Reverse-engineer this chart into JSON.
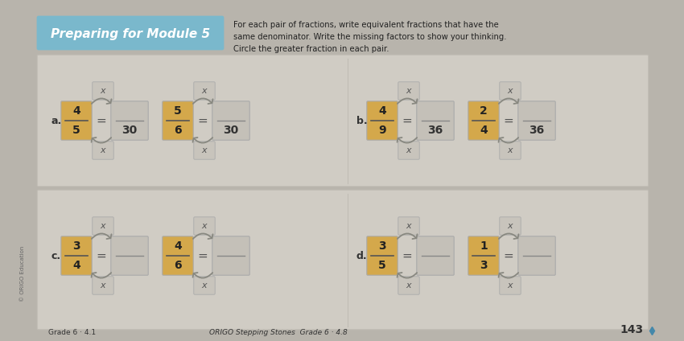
{
  "title": "Preparing for Module 5",
  "instructions": "For each pair of fractions, write equivalent fractions that have the\nsame denominator. Write the missing factors to show your thinking.\nCircle the greater fraction in each pair.",
  "bg_color": "#b8b4ac",
  "panel_bg": "#d0ccC4",
  "box_color_gold": "#d4a84b",
  "box_color_light": "#c8c4bc",
  "box_color_answer": "#c4c0b8",
  "header_bg": "#7ab8cc",
  "arrow_color": "#888880",
  "footer_text": "ORIGO Stepping Stones  Grade 6 · 4.8",
  "footer_left": "Grade 6 · 4.1",
  "page_num": "143",
  "problems": [
    {
      "label": "a.",
      "frac1_num": "4",
      "frac1_den": "5",
      "frac2_den": "30",
      "frac3_num": "5",
      "frac3_den": "6",
      "frac4_den": "30"
    },
    {
      "label": "b.",
      "frac1_num": "4",
      "frac1_den": "9",
      "frac2_den": "36",
      "frac3_num": "2",
      "frac3_den": "4",
      "frac4_den": "36"
    },
    {
      "label": "c.",
      "frac1_num": "3",
      "frac1_den": "4",
      "frac2_den": "",
      "frac3_num": "4",
      "frac3_den": "6",
      "frac4_den": ""
    },
    {
      "label": "d.",
      "frac1_num": "3",
      "frac1_den": "5",
      "frac2_den": "",
      "frac3_num": "1",
      "frac3_den": "3",
      "frac4_den": ""
    }
  ]
}
